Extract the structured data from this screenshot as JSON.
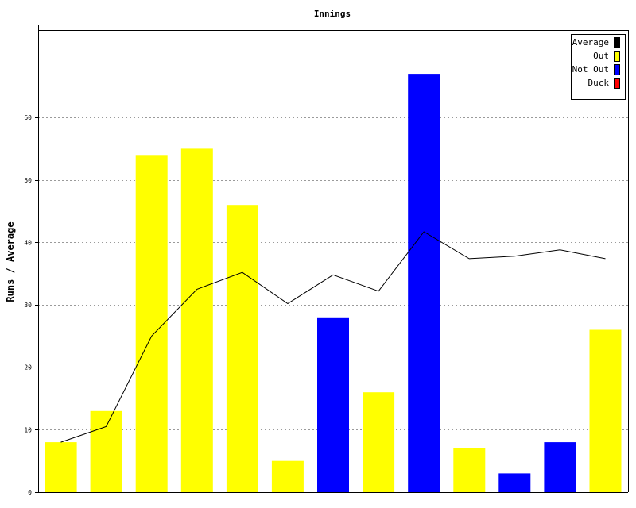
{
  "chart_data": {
    "type": "bar",
    "title": "Innings",
    "xlabel": "",
    "ylabel": "Runs / Average",
    "ylim": [
      0,
      74
    ],
    "yticks": [
      0,
      10,
      20,
      30,
      40,
      50,
      60
    ],
    "grid": true,
    "legend_position": "top-right",
    "bars": [
      {
        "value": 8,
        "type": "Out"
      },
      {
        "value": 13,
        "type": "Out"
      },
      {
        "value": 54,
        "type": "Out"
      },
      {
        "value": 55,
        "type": "Out"
      },
      {
        "value": 46,
        "type": "Out"
      },
      {
        "value": 5,
        "type": "Out"
      },
      {
        "value": 28,
        "type": "Not Out"
      },
      {
        "value": 16,
        "type": "Out"
      },
      {
        "value": 67,
        "type": "Not Out"
      },
      {
        "value": 7,
        "type": "Out"
      },
      {
        "value": 3,
        "type": "Not Out"
      },
      {
        "value": 8,
        "type": "Not Out"
      },
      {
        "value": 26,
        "type": "Out"
      }
    ],
    "average_line": {
      "name": "Average",
      "values": [
        8,
        10.5,
        25,
        32.5,
        35.2,
        30.2,
        34.8,
        32.2,
        41.7,
        37.4,
        37.8,
        38.8,
        37.4
      ]
    },
    "legend": [
      {
        "label": "Average",
        "color": "#000000"
      },
      {
        "label": "Out",
        "color": "#ffff00"
      },
      {
        "label": "Not Out",
        "color": "#0000ff"
      },
      {
        "label": "Duck",
        "color": "#ff0000"
      }
    ]
  }
}
